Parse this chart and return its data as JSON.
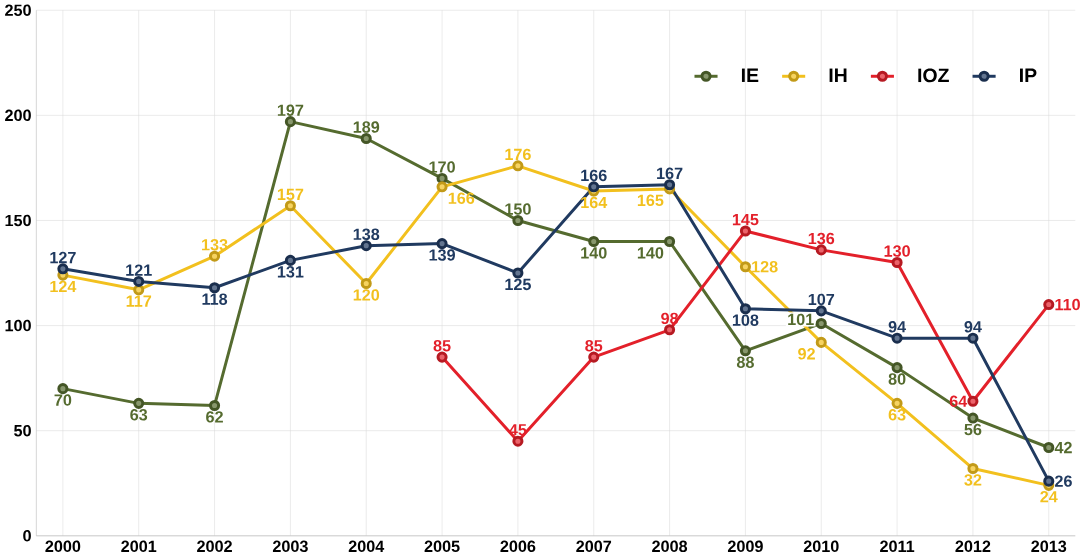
{
  "chart_data": {
    "type": "line",
    "categories": [
      "2000",
      "2001",
      "2002",
      "2003",
      "2004",
      "2005",
      "2006",
      "2007",
      "2008",
      "2009",
      "2010",
      "2011",
      "2012",
      "2013"
    ],
    "series": [
      {
        "name": "IE",
        "color": "#556b2f",
        "values": [
          70,
          63,
          62,
          197,
          189,
          170,
          150,
          140,
          140,
          88,
          101,
          80,
          56,
          42
        ]
      },
      {
        "name": "IH",
        "color": "#f2c01e",
        "values": [
          124,
          117,
          133,
          157,
          120,
          166,
          176,
          164,
          165,
          128,
          92,
          63,
          32,
          24
        ]
      },
      {
        "name": "IOZ",
        "color": "#e3202a",
        "values": [
          null,
          null,
          null,
          null,
          null,
          85,
          45,
          85,
          98,
          145,
          136,
          130,
          64,
          110
        ]
      },
      {
        "name": "IP",
        "color": "#203a60",
        "values": [
          127,
          121,
          118,
          131,
          138,
          139,
          125,
          166,
          167,
          108,
          107,
          94,
          94,
          26
        ]
      }
    ],
    "ylim": [
      0,
      250
    ],
    "yticks": [
      0,
      50,
      100,
      150,
      200,
      250
    ],
    "grid": true,
    "legend": "top right",
    "marker": "circle",
    "data_labels": true
  }
}
